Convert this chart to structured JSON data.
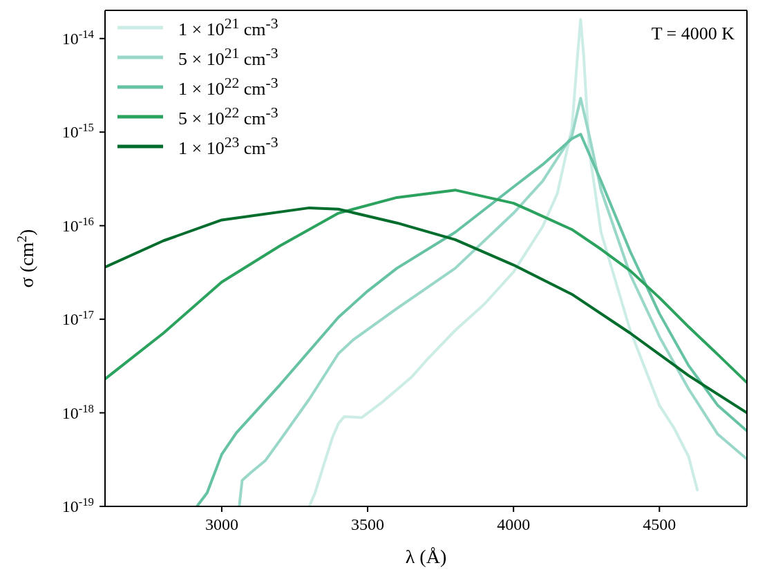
{
  "chart_data": {
    "type": "line",
    "xlabel": "λ (Å)",
    "ylabel": "σ (cm$^{2}$)",
    "annotations": [
      "T = 4000 K"
    ],
    "log": "y",
    "xlim": [
      2600,
      4800
    ],
    "xticks": [
      3000,
      3500,
      4000,
      4500
    ],
    "ylim": [
      1e-19,
      2e-14
    ],
    "yticks": [
      {
        "value": 1e-19,
        "label": "10$^{-19}$"
      },
      {
        "value": 1e-18,
        "label": "10$^{-18}$"
      },
      {
        "value": 1e-17,
        "label": "10$^{-17}$"
      },
      {
        "value": 1e-16,
        "label": "10$^{-16}$"
      },
      {
        "value": 1e-15,
        "label": "10$^{-15}$"
      },
      {
        "value": 1e-14,
        "label": "10$^{-14}$"
      }
    ],
    "legend": "top left",
    "marker": "none",
    "line_style": "solid",
    "series": [
      {
        "name": "1 × 10$^{21}$ cm$^{-3}$",
        "color": "#ccece6",
        "x": [
          3300,
          3320,
          3350,
          3380,
          3400,
          3420,
          3480,
          3550,
          3650,
          3700,
          3800,
          3900,
          4000,
          4100,
          4150,
          4200,
          4220,
          4230,
          4240,
          4260,
          4300,
          4400,
          4500,
          4550,
          4600,
          4630
        ],
        "values": [
          1e-19,
          1.4e-19,
          2.8e-19,
          5.5e-19,
          7.7e-19,
          9.1e-19,
          8.9e-19,
          1.3e-18,
          2.4e-18,
          3.6e-18,
          7.6e-18,
          1.45e-17,
          3.2e-17,
          9.8e-17,
          2.2e-16,
          1.1e-15,
          6.9e-15,
          1.6e-14,
          6.9e-15,
          6.2e-16,
          8.5e-17,
          7.6e-18,
          1.2e-18,
          6.9e-19,
          3.4e-19,
          1.5e-19
        ]
      },
      {
        "name": "5 × 10$^{21}$ cm$^{-3}$",
        "color": "#99d8c9",
        "x": [
          3060,
          3070,
          3100,
          3150,
          3200,
          3300,
          3400,
          3450,
          3600,
          3800,
          4000,
          4100,
          4200,
          4230,
          4260,
          4300,
          4400,
          4500,
          4600,
          4700,
          4800
        ],
        "values": [
          1e-19,
          1.9e-19,
          2.3e-19,
          3.1e-19,
          5.1e-19,
          1.4e-18,
          4.3e-18,
          6e-18,
          1.3e-17,
          3.5e-17,
          1.36e-16,
          3e-16,
          9.1e-16,
          2.3e-15,
          9.1e-16,
          2.4e-16,
          3e-17,
          6.5e-18,
          1.8e-18,
          5.9e-19,
          3.2e-19
        ]
      },
      {
        "name": "1 × 10$^{22}$ cm$^{-3}$",
        "color": "#66c2a4",
        "x": [
          2915,
          2950,
          3000,
          3050,
          3200,
          3400,
          3500,
          3600,
          3800,
          4000,
          4100,
          4200,
          4230,
          4300,
          4400,
          4500,
          4600,
          4700,
          4800
        ],
        "values": [
          1e-19,
          1.4e-19,
          3.6e-19,
          6.1e-19,
          2e-18,
          1.05e-17,
          2e-17,
          3.5e-17,
          8.5e-17,
          2.6e-16,
          4.5e-16,
          8.5e-16,
          9.5e-16,
          3e-16,
          5.3e-17,
          1.15e-17,
          3.2e-18,
          1.2e-18,
          6.4e-19
        ]
      },
      {
        "name": "5 × 10$^{22}$ cm$^{-3}$",
        "color": "#2ca25f",
        "x": [
          2600,
          2800,
          3000,
          3200,
          3400,
          3600,
          3800,
          4000,
          4100,
          4200,
          4300,
          4400,
          4500,
          4600,
          4700,
          4800
        ],
        "values": [
          2.3e-18,
          7.1e-18,
          2.5e-17,
          6.1e-17,
          1.36e-16,
          2e-16,
          2.4e-16,
          1.74e-16,
          1.26e-16,
          9.1e-17,
          5.6e-17,
          3.3e-17,
          1.7e-17,
          8.3e-18,
          4.2e-18,
          2.1e-18
        ]
      },
      {
        "name": "1 × 10$^{23}$ cm$^{-3}$",
        "color": "#006d2c",
        "x": [
          2600,
          2800,
          3000,
          3300,
          3400,
          3600,
          3800,
          4000,
          4200,
          4400,
          4600,
          4800
        ],
        "values": [
          3.6e-17,
          6.9e-17,
          1.15e-16,
          1.55e-16,
          1.5e-16,
          1.07e-16,
          7.1e-17,
          3.8e-17,
          1.85e-17,
          7.1e-18,
          2.5e-18,
          1e-18
        ]
      }
    ]
  }
}
